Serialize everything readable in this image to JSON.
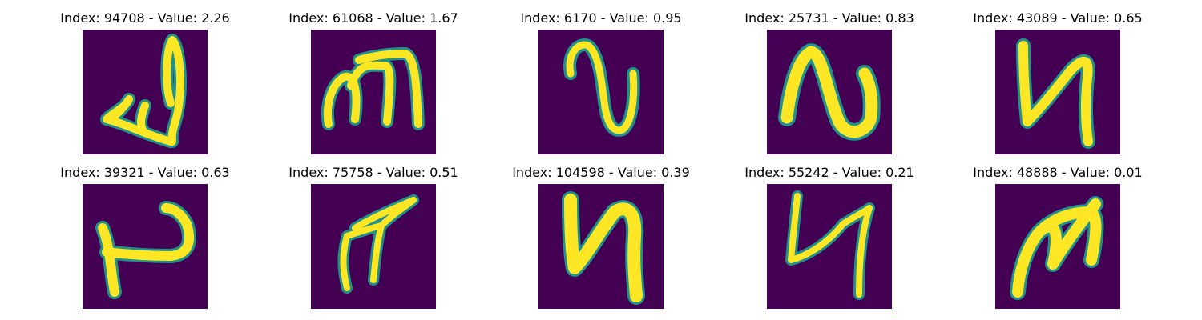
{
  "colors": {
    "background": "#440154",
    "mid_1": "#3b528b",
    "mid_2": "#21918c",
    "mid_3": "#5ec962",
    "foreground": "#fde725"
  },
  "panels": [
    {
      "title": "Index: 94708 - Value: 2.26",
      "glyph": "handwritten-char-1"
    },
    {
      "title": "Index: 61068 - Value: 1.67",
      "glyph": "handwritten-char-2"
    },
    {
      "title": "Index: 6170 - Value: 0.95",
      "glyph": "handwritten-char-3"
    },
    {
      "title": "Index: 25731 - Value: 0.83",
      "glyph": "handwritten-char-4"
    },
    {
      "title": "Index: 43089 - Value: 0.65",
      "glyph": "handwritten-char-5"
    },
    {
      "title": "Index: 39321 - Value: 0.63",
      "glyph": "handwritten-char-6"
    },
    {
      "title": "Index: 75758 - Value: 0.51",
      "glyph": "handwritten-char-7"
    },
    {
      "title": "Index: 104598 - Value: 0.39",
      "glyph": "handwritten-char-8"
    },
    {
      "title": "Index: 55242 - Value: 0.21",
      "glyph": "handwritten-char-9"
    },
    {
      "title": "Index: 48888 - Value: 0.01",
      "glyph": "handwritten-char-10"
    }
  ]
}
